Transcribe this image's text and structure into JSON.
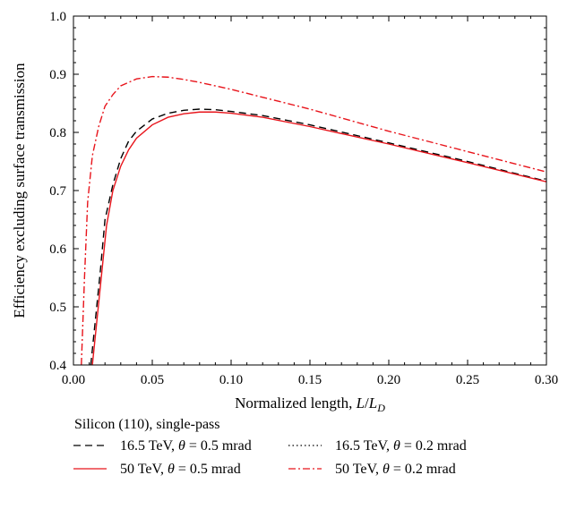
{
  "chart_data": {
    "type": "line",
    "xlabel": {
      "prefix": "Normalized length, ",
      "var": "L",
      "sep": "/",
      "var2": "L",
      "sub": "D"
    },
    "ylabel": "Efficiency excluding surface transmission",
    "xlim": [
      0,
      0.3
    ],
    "ylim": [
      0.4,
      1.0
    ],
    "x_ticks": [
      "0.00",
      "0.05",
      "0.10",
      "0.15",
      "0.20",
      "0.25",
      "0.30"
    ],
    "y_ticks": [
      "0.4",
      "0.5",
      "0.6",
      "0.7",
      "0.8",
      "0.9",
      "1.0"
    ],
    "grid": false,
    "legend_title": "Silicon (110), single-pass",
    "legend_placement": "bottom, below plot",
    "series": [
      {
        "name": "16.5 TeV, θ = 0.5 mrad",
        "label": {
          "pre": "16.5 TeV, ",
          "theta": "θ",
          "post": " = 0.5 mrad"
        },
        "color": "#000000",
        "dash": "dashed",
        "x": [
          0.011,
          0.014,
          0.017,
          0.02,
          0.025,
          0.03,
          0.035,
          0.04,
          0.05,
          0.06,
          0.07,
          0.08,
          0.09,
          0.1,
          0.12,
          0.15,
          0.2,
          0.25,
          0.3
        ],
        "y": [
          0.4,
          0.48,
          0.56,
          0.65,
          0.71,
          0.755,
          0.785,
          0.802,
          0.823,
          0.833,
          0.838,
          0.84,
          0.839,
          0.836,
          0.829,
          0.813,
          0.782,
          0.75,
          0.716
        ]
      },
      {
        "name": "16.5 TeV, θ = 0.2 mrad",
        "label": {
          "pre": "16.5 TeV, ",
          "theta": "θ",
          "post": " = 0.2 mrad"
        },
        "color": "#000000",
        "dash": "dotted",
        "x": [],
        "y": []
      },
      {
        "name": "50 TeV, θ = 0.5 mrad",
        "label": {
          "pre": "50 TeV, ",
          "theta": "θ",
          "post": " = 0.5 mrad"
        },
        "color": "#e8141b",
        "dash": "solid",
        "x": [
          0.012,
          0.015,
          0.018,
          0.021,
          0.025,
          0.03,
          0.035,
          0.04,
          0.05,
          0.06,
          0.07,
          0.08,
          0.09,
          0.1,
          0.12,
          0.15,
          0.2,
          0.25,
          0.3
        ],
        "y": [
          0.4,
          0.48,
          0.56,
          0.64,
          0.7,
          0.742,
          0.77,
          0.79,
          0.813,
          0.826,
          0.832,
          0.835,
          0.835,
          0.833,
          0.826,
          0.81,
          0.78,
          0.748,
          0.715
        ]
      },
      {
        "name": "50 TeV, θ = 0.2 mrad",
        "label": {
          "pre": "50 TeV, ",
          "theta": "θ",
          "post": " = 0.2 mrad"
        },
        "color": "#e8141b",
        "dash": "dashdot",
        "x": [
          0.005,
          0.007,
          0.009,
          0.012,
          0.016,
          0.02,
          0.025,
          0.03,
          0.04,
          0.05,
          0.06,
          0.07,
          0.08,
          0.1,
          0.15,
          0.2,
          0.25,
          0.3
        ],
        "y": [
          0.4,
          0.55,
          0.68,
          0.76,
          0.81,
          0.845,
          0.865,
          0.88,
          0.892,
          0.896,
          0.895,
          0.891,
          0.886,
          0.874,
          0.84,
          0.802,
          0.767,
          0.732
        ]
      }
    ]
  }
}
